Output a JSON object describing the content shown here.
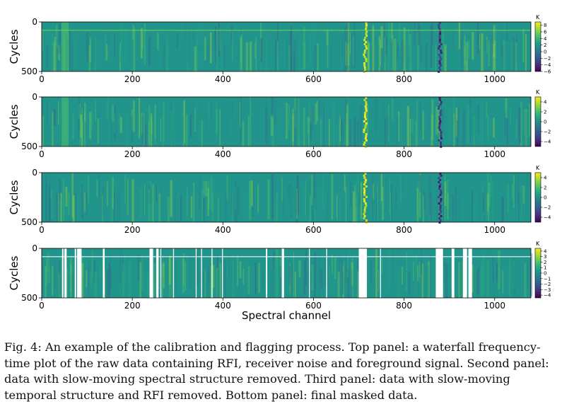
{
  "chart_data": [
    {
      "type": "heatmap",
      "panel": 1,
      "ylabel": "Cycles",
      "xlabel": "",
      "xticks": [
        0,
        200,
        400,
        600,
        800,
        1000
      ],
      "yticks": [
        0,
        500
      ],
      "xlim": [
        0,
        1080
      ],
      "ylim": [
        500,
        0
      ],
      "colorbar": {
        "label": "K",
        "ticks": [
          8,
          6,
          4,
          2,
          0,
          -2,
          -4,
          -6
        ],
        "range": [
          -6,
          9
        ]
      },
      "features": {
        "rfi_channels": [
          715,
          880
        ],
        "bright_band_channel": 50,
        "horizontal_line_cycle": 80,
        "flagged_channels": []
      }
    },
    {
      "type": "heatmap",
      "panel": 2,
      "ylabel": "Cycles",
      "xlabel": "",
      "xticks": [
        0,
        200,
        400,
        600,
        800,
        1000
      ],
      "yticks": [
        0,
        500
      ],
      "xlim": [
        0,
        1080
      ],
      "ylim": [
        500,
        0
      ],
      "colorbar": {
        "label": "K",
        "ticks": [
          4,
          2,
          0,
          -2,
          -4
        ],
        "range": [
          -5,
          5
        ]
      },
      "features": {
        "rfi_channels": [
          715,
          880
        ],
        "bright_band_channel": 50,
        "horizontal_line_cycle": null,
        "flagged_channels": []
      }
    },
    {
      "type": "heatmap",
      "panel": 3,
      "ylabel": "Cycles",
      "xlabel": "",
      "xticks": [
        0,
        200,
        400,
        600,
        800,
        1000
      ],
      "yticks": [
        0,
        500
      ],
      "xlim": [
        0,
        1080
      ],
      "ylim": [
        500,
        0
      ],
      "colorbar": {
        "label": "K",
        "ticks": [
          4,
          2,
          0,
          -2,
          -4
        ],
        "range": [
          -5,
          5
        ]
      },
      "features": {
        "rfi_channels": [
          715,
          880
        ],
        "bright_band_channel": null,
        "horizontal_line_cycle": null,
        "flagged_channels": []
      }
    },
    {
      "type": "heatmap",
      "panel": 4,
      "ylabel": "Cycles",
      "xlabel": "Spectral channel",
      "xticks": [
        0,
        200,
        400,
        600,
        800,
        1000
      ],
      "yticks": [
        0,
        500
      ],
      "xlim": [
        0,
        1080
      ],
      "ylim": [
        500,
        0
      ],
      "colorbar": {
        "label": "K",
        "ticks": [
          4,
          3,
          2,
          1,
          0,
          -1,
          -2,
          -3,
          -4
        ],
        "range": [
          -4.5,
          4.5
        ]
      },
      "features": {
        "rfi_channels": [],
        "bright_band_channel": null,
        "horizontal_line_cycle": 80,
        "flagged_channels": [
          [
            45,
            48
          ],
          [
            50,
            55
          ],
          [
            73,
            76
          ],
          [
            78,
            88
          ],
          [
            135,
            139
          ],
          [
            238,
            246
          ],
          [
            253,
            258
          ],
          [
            262,
            264
          ],
          [
            290,
            292
          ],
          [
            340,
            342
          ],
          [
            352,
            354
          ],
          [
            375,
            377
          ],
          [
            398,
            400
          ],
          [
            495,
            498
          ],
          [
            530,
            535
          ],
          [
            590,
            592
          ],
          [
            628,
            630
          ],
          [
            700,
            718
          ],
          [
            747,
            749
          ],
          [
            870,
            886
          ],
          [
            905,
            911
          ],
          [
            930,
            939
          ],
          [
            942,
            950
          ]
        ]
      }
    }
  ],
  "caption": {
    "fig_label": "Fig. 4:",
    "text": "An example of the calibration and flagging process. Top panel: a waterfall frequency-time plot of the raw data containing RFI, receiver noise and foreground signal. Second panel: data with slow-moving spectral structure removed. Third panel: data with slow-moving temporal structure and RFI removed. Bottom panel: final masked data."
  },
  "colors": {
    "viridis": [
      "#440154",
      "#482878",
      "#3e4989",
      "#31688e",
      "#26828e",
      "#1f9e89",
      "#35b779",
      "#6ece58",
      "#b5de2b",
      "#fde725"
    ],
    "annotation_ink": "#d6336c"
  }
}
